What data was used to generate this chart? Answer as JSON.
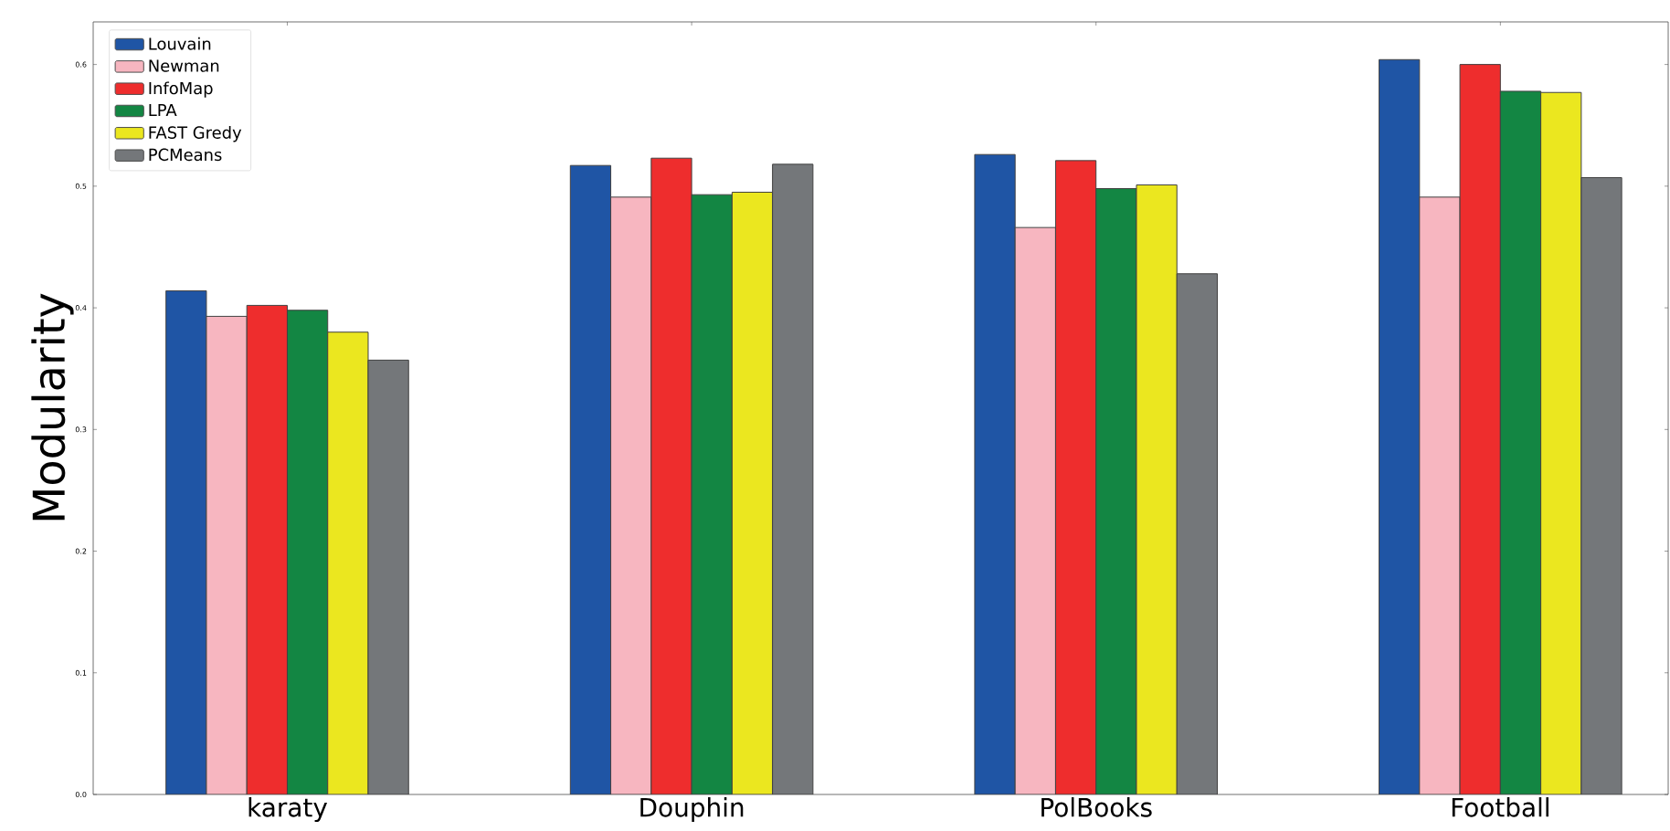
{
  "chart_data": {
    "type": "bar",
    "ylabel": "Modularity",
    "categories": [
      "karaty",
      "Douphin",
      "PolBooks",
      "Football"
    ],
    "series": [
      {
        "name": "Louvain",
        "color": "#1f55a5",
        "values": [
          0.414,
          0.517,
          0.526,
          0.604
        ]
      },
      {
        "name": "Newman",
        "color": "#f7b6c0",
        "values": [
          0.393,
          0.491,
          0.466,
          0.491
        ]
      },
      {
        "name": "InfoMap",
        "color": "#ee2d2d",
        "values": [
          0.402,
          0.523,
          0.521,
          0.6
        ]
      },
      {
        "name": "LPA",
        "color": "#138643",
        "values": [
          0.398,
          0.493,
          0.498,
          0.578
        ]
      },
      {
        "name": "FAST Gredy",
        "color": "#ebe71f",
        "values": [
          0.38,
          0.495,
          0.501,
          0.577
        ]
      },
      {
        "name": "PCMeans",
        "color": "#74777a",
        "values": [
          0.357,
          0.518,
          0.428,
          0.507
        ]
      }
    ],
    "ylim": [
      0,
      0.635
    ],
    "yticks": [
      {
        "value": 0,
        "label": "0.0"
      },
      {
        "value": 0.1,
        "label": "0.1"
      },
      {
        "value": 0.2,
        "label": "0.2"
      },
      {
        "value": 0.3,
        "label": "0.3"
      },
      {
        "value": 0.4,
        "label": "0.4"
      },
      {
        "value": 0.5,
        "label": "0.5"
      },
      {
        "value": 0.6,
        "label": "0.6"
      }
    ],
    "grid": false,
    "legend": "top left"
  }
}
